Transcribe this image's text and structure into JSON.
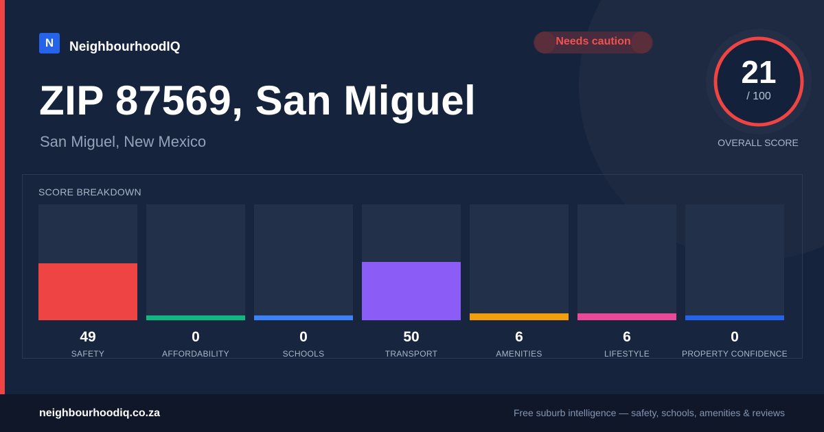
{
  "brand": {
    "logo_letter": "N",
    "name": "NeighbourhoodIQ"
  },
  "badge": {
    "text": "Needs caution",
    "color": "#f05252"
  },
  "header": {
    "title": "ZIP 87569, San Miguel",
    "subtitle": "San Miguel, New Mexico"
  },
  "overall": {
    "score": "21",
    "max": "/ 100",
    "label": "OVERALL SCORE",
    "ring_color": "#ef4444"
  },
  "breakdown": {
    "title": "SCORE BREAKDOWN",
    "items": [
      {
        "label": "SAFETY",
        "value": "49",
        "color": "#ef4444"
      },
      {
        "label": "AFFORDABILITY",
        "value": "0",
        "color": "#10b981"
      },
      {
        "label": "SCHOOLS",
        "value": "0",
        "color": "#3b82f6"
      },
      {
        "label": "TRANSPORT",
        "value": "50",
        "color": "#8b5cf6"
      },
      {
        "label": "AMENITIES",
        "value": "6",
        "color": "#f59e0b"
      },
      {
        "label": "LIFESTYLE",
        "value": "6",
        "color": "#ec4899"
      },
      {
        "label": "PROPERTY CONFIDENCE",
        "value": "0",
        "color": "#2563eb"
      }
    ]
  },
  "footer": {
    "url": "neighbourhoodiq.co.za",
    "tagline": "Free suburb intelligence — safety, schools, amenities & reviews"
  },
  "colors": {
    "background": "#16233d",
    "accent": "#ef4444",
    "footer": "#0f1729"
  }
}
